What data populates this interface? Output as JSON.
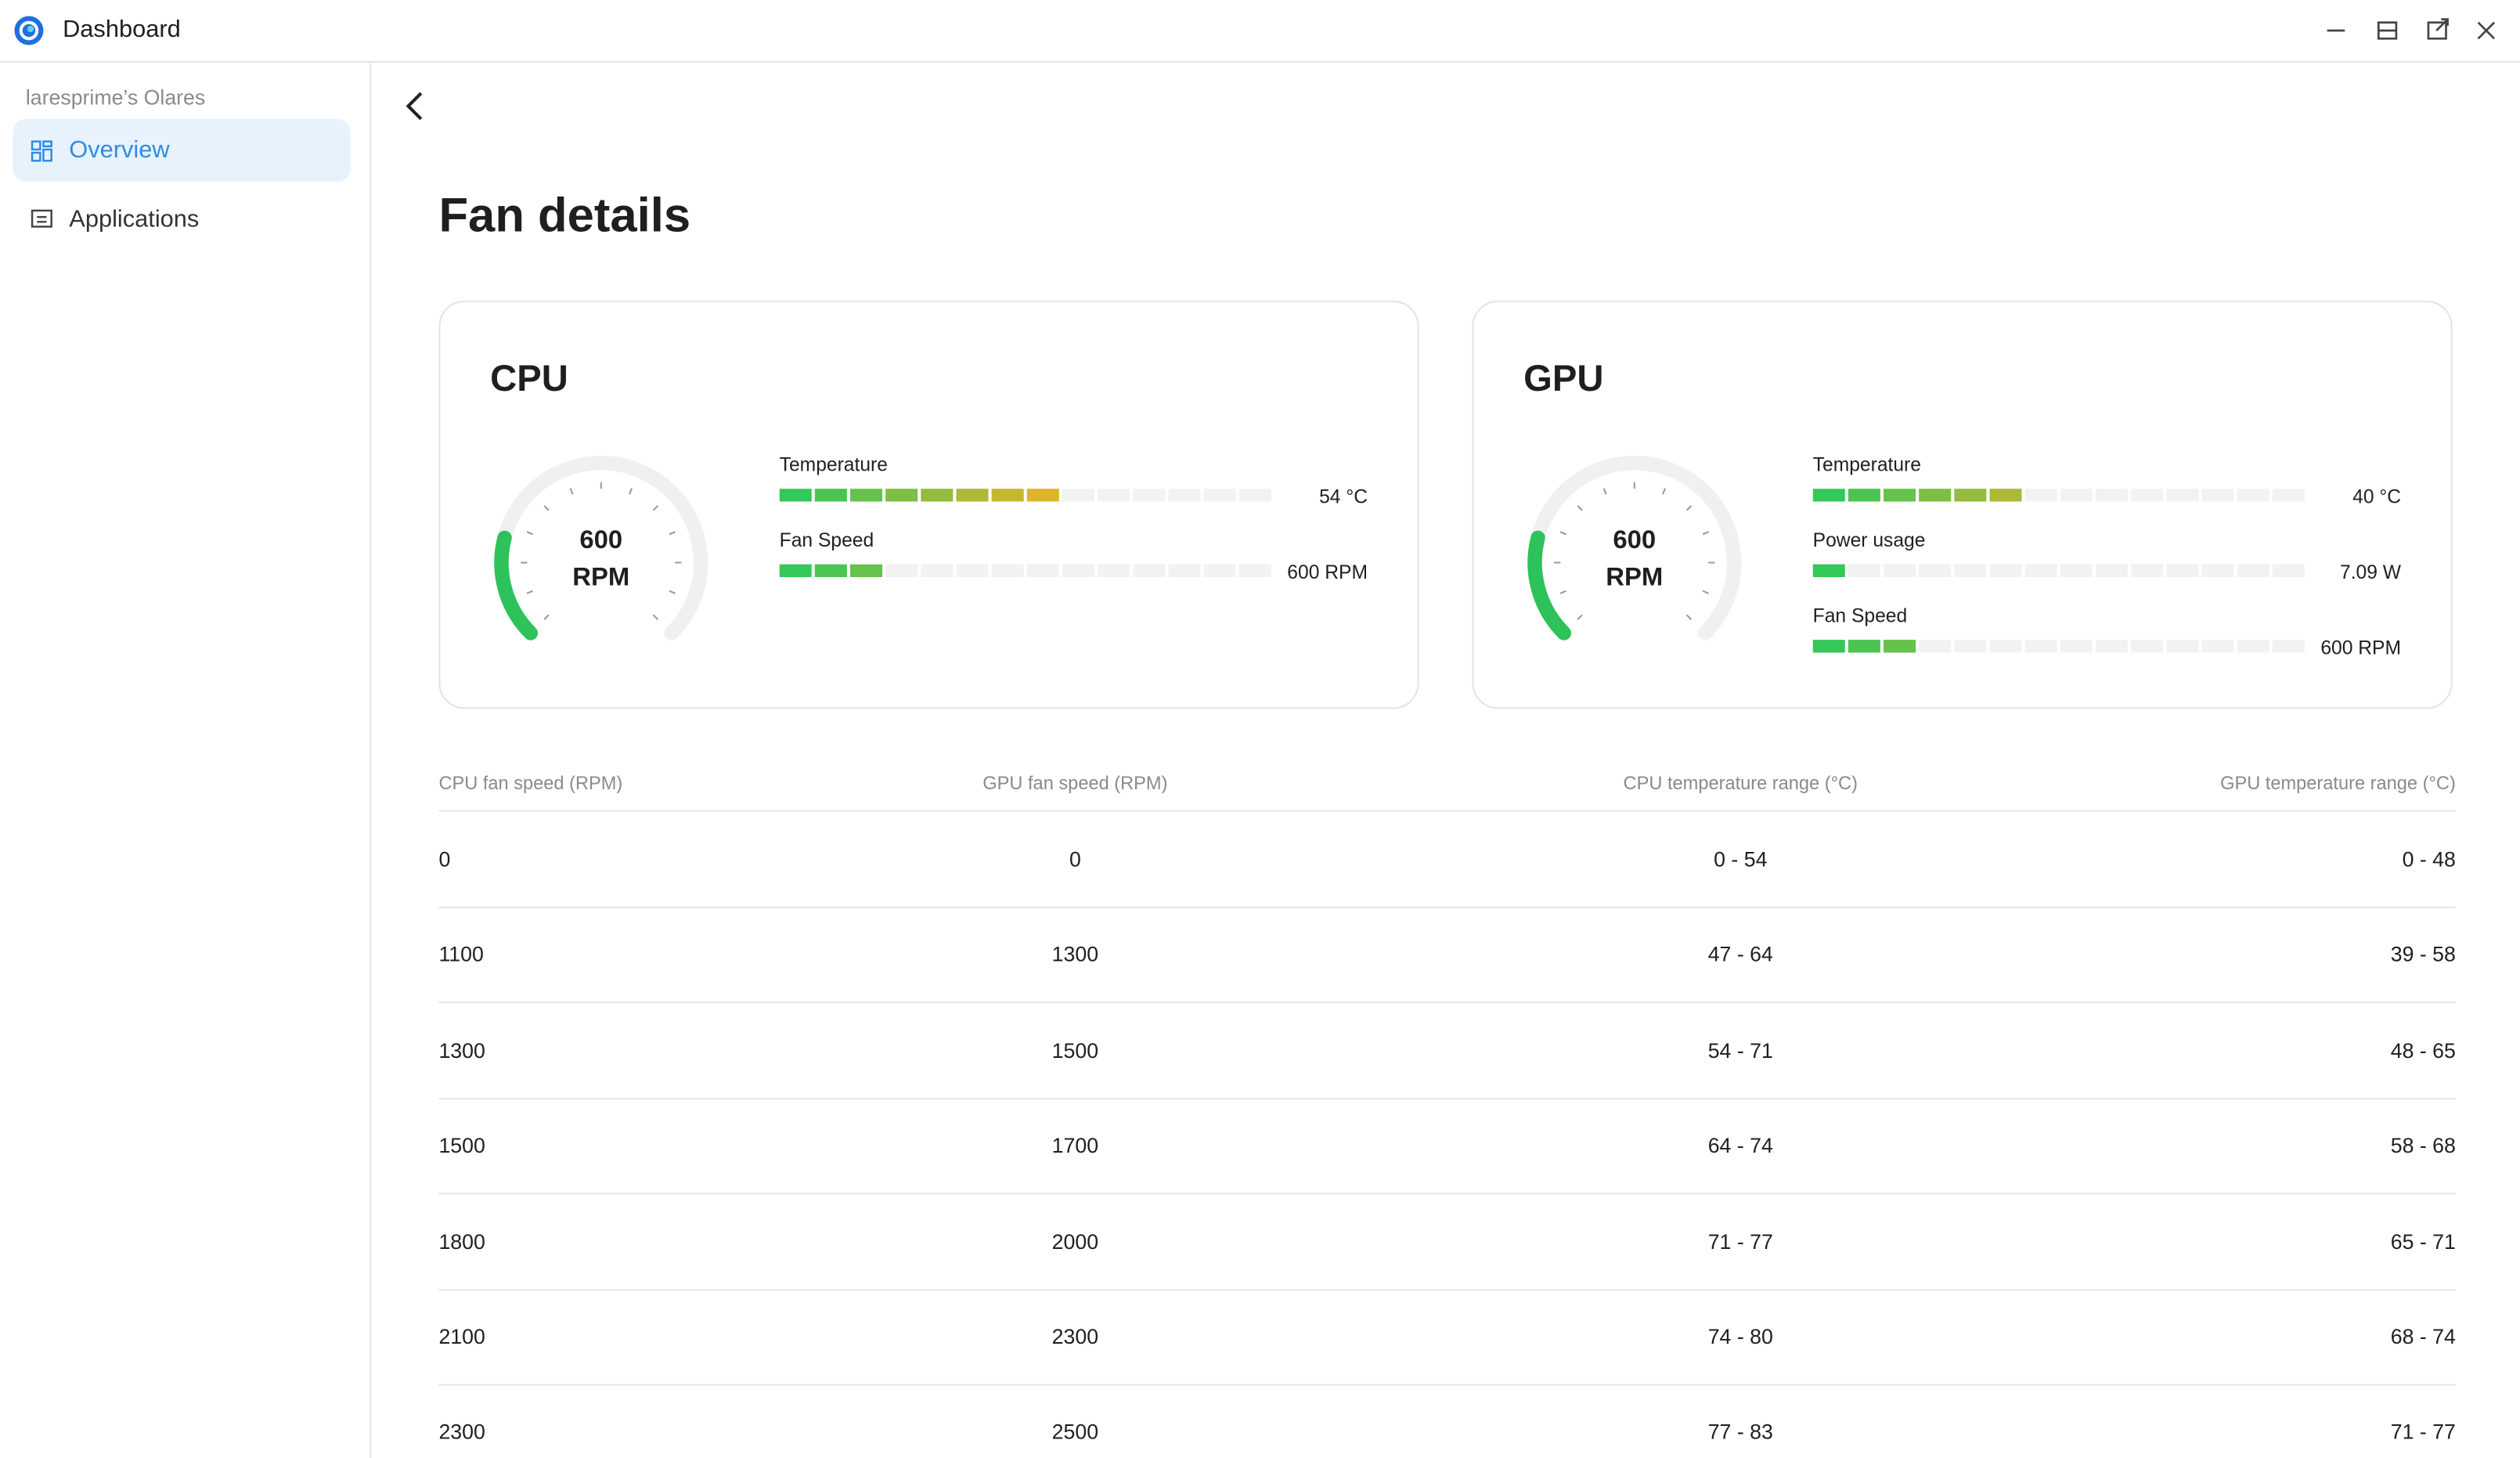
{
  "window": {
    "title": "Dashboard"
  },
  "sidebar": {
    "account": "laresprime’s Olares",
    "nav": [
      "Overview",
      "Applications"
    ]
  },
  "page": {
    "title": "Fan details"
  },
  "cards": [
    {
      "title": "CPU",
      "gauge": {
        "value": "600",
        "unit": "RPM",
        "level": 0.22
      },
      "metrics": [
        {
          "label": "Temperature",
          "value": "54 °C",
          "level": 0.54
        },
        {
          "label": "Fan Speed",
          "value": "600 RPM",
          "level": 0.21
        }
      ]
    },
    {
      "title": "GPU",
      "gauge": {
        "value": "600",
        "unit": "RPM",
        "level": 0.22
      },
      "metrics": [
        {
          "label": "Temperature",
          "value": "40 °C",
          "level": 0.43
        },
        {
          "label": "Power usage",
          "value": "7.09 W",
          "level": 0.07
        },
        {
          "label": "Fan Speed",
          "value": "600 RPM",
          "level": 0.21
        }
      ]
    }
  ],
  "table": {
    "headers": [
      "CPU fan speed (RPM)",
      "GPU fan speed (RPM)",
      "CPU temperature range (°C)",
      "GPU temperature range (°C)"
    ],
    "rows": [
      [
        "0",
        "0",
        "0 - 54",
        "0 - 48"
      ],
      [
        "1100",
        "1300",
        "47 - 64",
        "39 - 58"
      ],
      [
        "1300",
        "1500",
        "54 - 71",
        "48 - 65"
      ],
      [
        "1500",
        "1700",
        "64 - 74",
        "58 - 68"
      ],
      [
        "1800",
        "2000",
        "71 - 77",
        "65 - 71"
      ],
      [
        "2100",
        "2300",
        "74 - 80",
        "68 - 74"
      ],
      [
        "2300",
        "2500",
        "77 - 83",
        "71 - 77"
      ]
    ]
  }
}
